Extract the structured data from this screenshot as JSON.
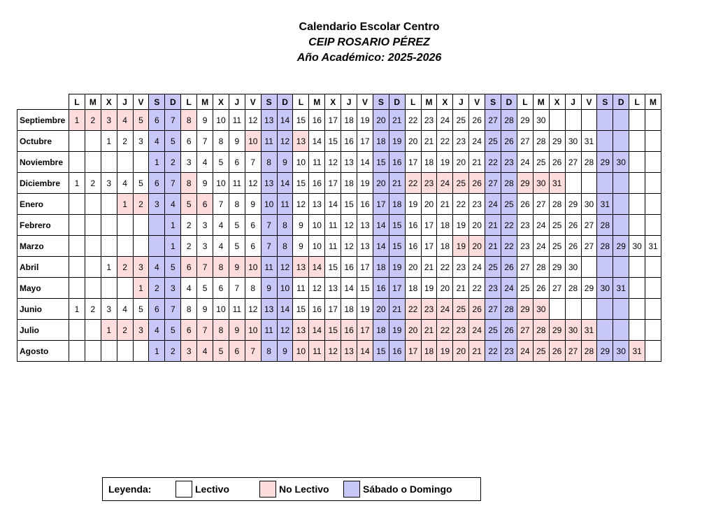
{
  "header": {
    "title": "Calendario Escolar Centro",
    "school": "CEIP ROSARIO PÉREZ",
    "year": "Año Académico: 2025-2026"
  },
  "weekday_headers": [
    "L",
    "M",
    "X",
    "J",
    "V",
    "S",
    "D",
    "L",
    "M",
    "X",
    "J",
    "V",
    "S",
    "D",
    "L",
    "M",
    "X",
    "J",
    "V",
    "S",
    "D",
    "L",
    "M",
    "X",
    "J",
    "V",
    "S",
    "D",
    "L",
    "M",
    "X",
    "J",
    "V",
    "S",
    "D",
    "L",
    "M"
  ],
  "months": [
    {
      "name": "Septiembre",
      "offset": 0,
      "days": 30,
      "nolectivo": [
        1,
        2,
        3,
        4,
        5,
        8
      ]
    },
    {
      "name": "Octubre",
      "offset": 2,
      "days": 31,
      "nolectivo": [
        10,
        13
      ]
    },
    {
      "name": "Noviembre",
      "offset": 5,
      "days": 30,
      "nolectivo": []
    },
    {
      "name": "Diciembre",
      "offset": 0,
      "days": 31,
      "nolectivo": [
        8,
        22,
        23,
        24,
        25,
        26,
        29,
        30,
        31
      ]
    },
    {
      "name": "Enero",
      "offset": 3,
      "days": 31,
      "nolectivo": [
        1,
        2,
        5,
        6
      ]
    },
    {
      "name": "Febrero",
      "offset": 6,
      "days": 28,
      "nolectivo": []
    },
    {
      "name": "Marzo",
      "offset": 6,
      "days": 31,
      "nolectivo": [
        19,
        20
      ]
    },
    {
      "name": "Abril",
      "offset": 2,
      "days": 30,
      "nolectivo": [
        2,
        3,
        6,
        7,
        8,
        9,
        10,
        13,
        14
      ]
    },
    {
      "name": "Mayo",
      "offset": 4,
      "days": 31,
      "nolectivo": [
        1
      ]
    },
    {
      "name": "Junio",
      "offset": 0,
      "days": 30,
      "nolectivo": [
        22,
        23,
        24,
        25,
        26,
        29,
        30
      ]
    },
    {
      "name": "Julio",
      "offset": 2,
      "days": 31,
      "nolectivo": [
        1,
        2,
        3,
        6,
        7,
        8,
        9,
        10,
        13,
        14,
        15,
        16,
        17,
        20,
        21,
        22,
        23,
        24,
        27,
        28,
        29,
        30,
        31
      ]
    },
    {
      "name": "Agosto",
      "offset": 5,
      "days": 31,
      "nolectivo": [
        3,
        4,
        5,
        6,
        7,
        10,
        11,
        12,
        13,
        14,
        17,
        18,
        19,
        20,
        21,
        24,
        25,
        26,
        27,
        28,
        31
      ]
    }
  ],
  "legend": {
    "label": "Leyenda:",
    "lectivo": "Lectivo",
    "no_lectivo": "No Lectivo",
    "fin_semana": "Sábado o Domingo"
  },
  "colors": {
    "weekend": "#c8c8f8",
    "no_lectivo": "#fcdcdc",
    "lectivo": "#ffffff"
  }
}
